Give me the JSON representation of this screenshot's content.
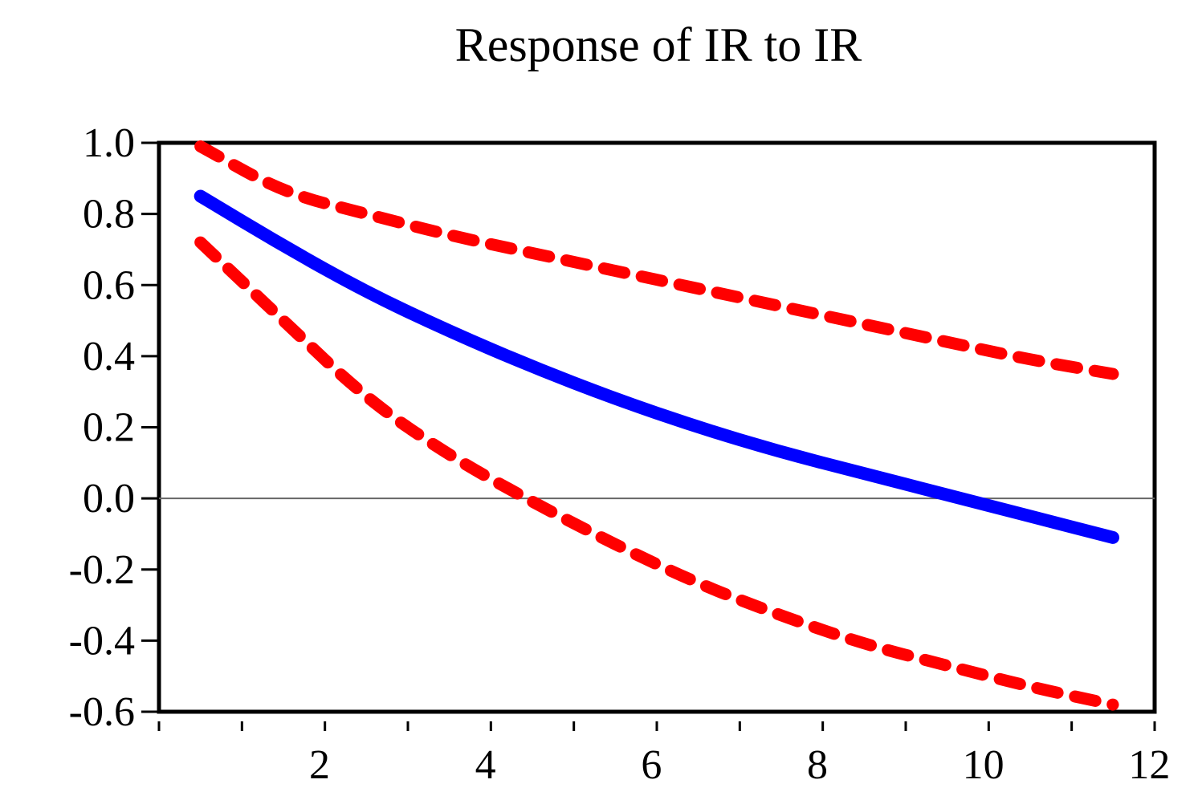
{
  "chart_data": {
    "type": "line",
    "title": "Response of IR to IR",
    "xlabel": "",
    "ylabel": "",
    "x": [
      1,
      2,
      3,
      4,
      5,
      6,
      7,
      8,
      9,
      10,
      11,
      12
    ],
    "xlim": [
      0.5,
      12.5
    ],
    "ylim": [
      -0.6,
      1.0
    ],
    "xticks": [
      2,
      4,
      6,
      8,
      10,
      12
    ],
    "yticks": [
      1.0,
      0.8,
      0.6,
      0.4,
      0.2,
      0.0,
      -0.2,
      -0.4,
      -0.6
    ],
    "ytick_labels": [
      "1.0",
      "0.8",
      "0.6",
      "0.4",
      "0.2",
      "0.0",
      "-0.2",
      "-0.4",
      "-0.6"
    ],
    "xtick_labels": [
      "2",
      "4",
      "6",
      "8",
      "10",
      "12"
    ],
    "zero_line": true,
    "grid": false,
    "series": [
      {
        "role": "response",
        "style": "solid",
        "color": "#0000ff",
        "values": [
          0.85,
          0.71,
          0.58,
          0.47,
          0.37,
          0.28,
          0.2,
          0.13,
          0.07,
          0.01,
          -0.05,
          -0.11
        ]
      },
      {
        "role": "upper-band",
        "style": "dashed",
        "color": "#ff0000",
        "values": [
          0.99,
          0.86,
          0.8,
          0.74,
          0.69,
          0.64,
          0.59,
          0.54,
          0.49,
          0.44,
          0.39,
          0.35
        ]
      },
      {
        "role": "lower-band",
        "style": "dashed",
        "color": "#ff0000",
        "values": [
          0.72,
          0.5,
          0.28,
          0.12,
          -0.01,
          -0.13,
          -0.24,
          -0.33,
          -0.41,
          -0.47,
          -0.53,
          -0.58
        ]
      }
    ]
  }
}
